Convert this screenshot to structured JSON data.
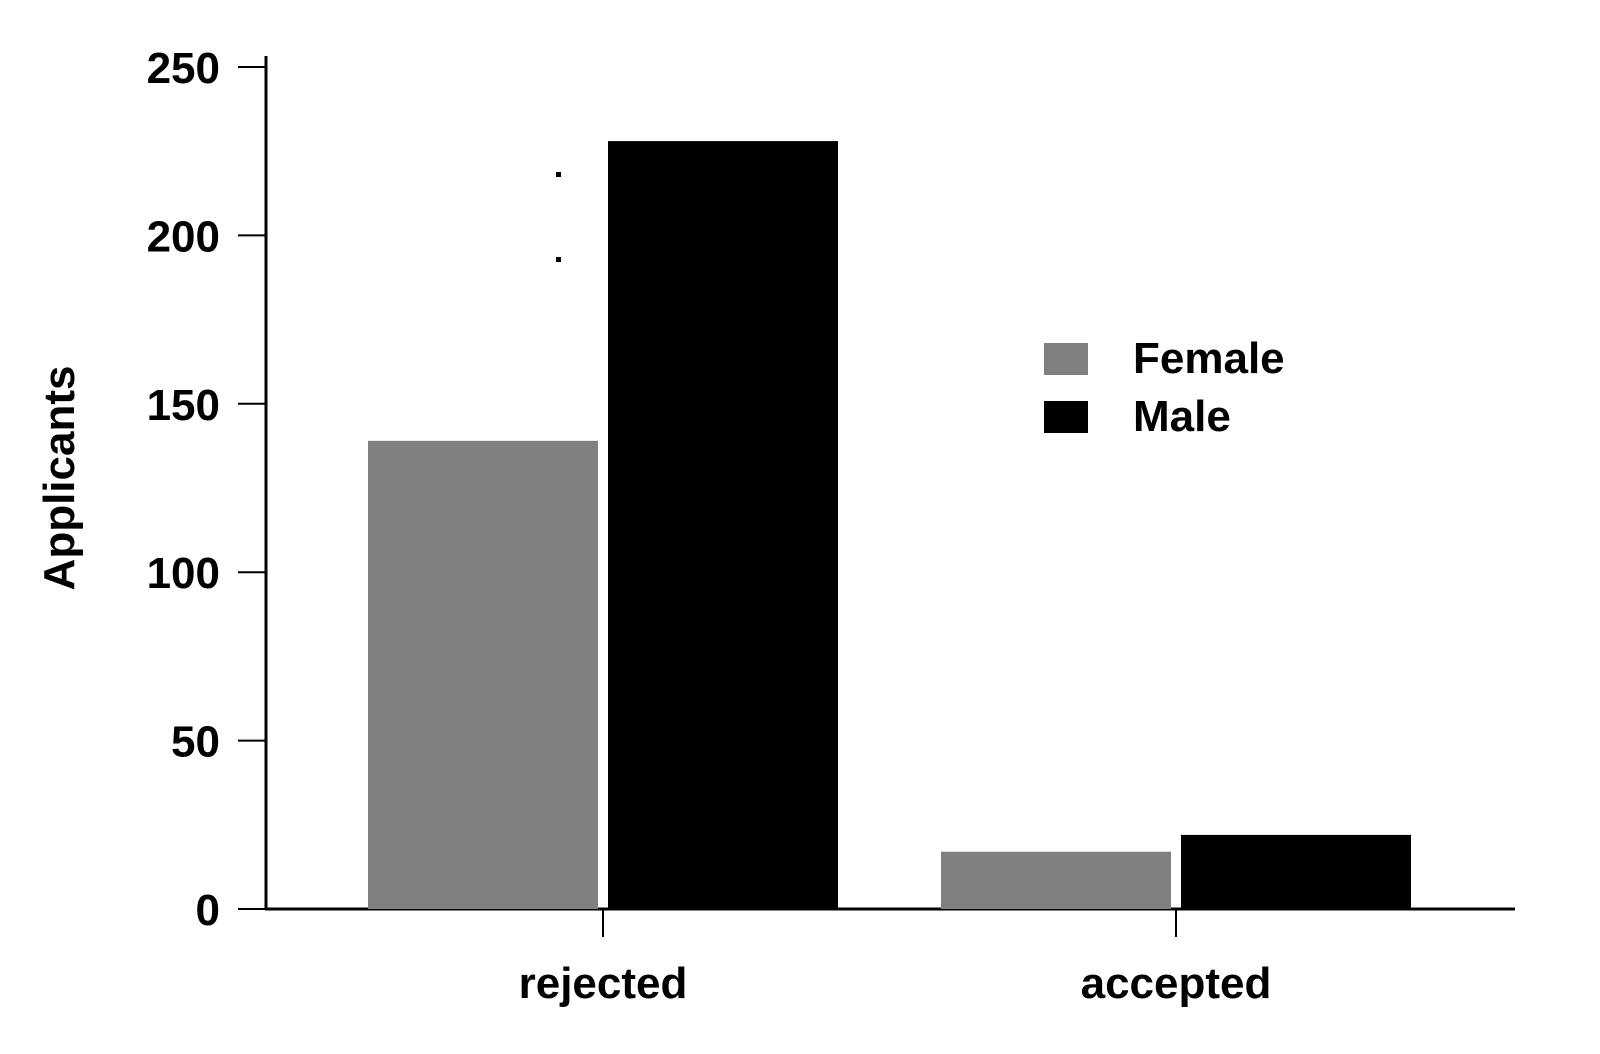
{
  "chart_data": {
    "type": "bar",
    "title": "",
    "xlabel": "",
    "ylabel": "Applicants",
    "categories": [
      "rejected",
      "accepted"
    ],
    "series": [
      {
        "name": "Female",
        "values": [
          139,
          17
        ],
        "color": "#808080"
      },
      {
        "name": "Male",
        "values": [
          228,
          22
        ],
        "color": "#000000"
      }
    ],
    "ylim": [
      0,
      250
    ],
    "yticks": [
      0,
      50,
      100,
      150,
      200,
      250
    ],
    "grid": false,
    "legend_position": "right"
  }
}
